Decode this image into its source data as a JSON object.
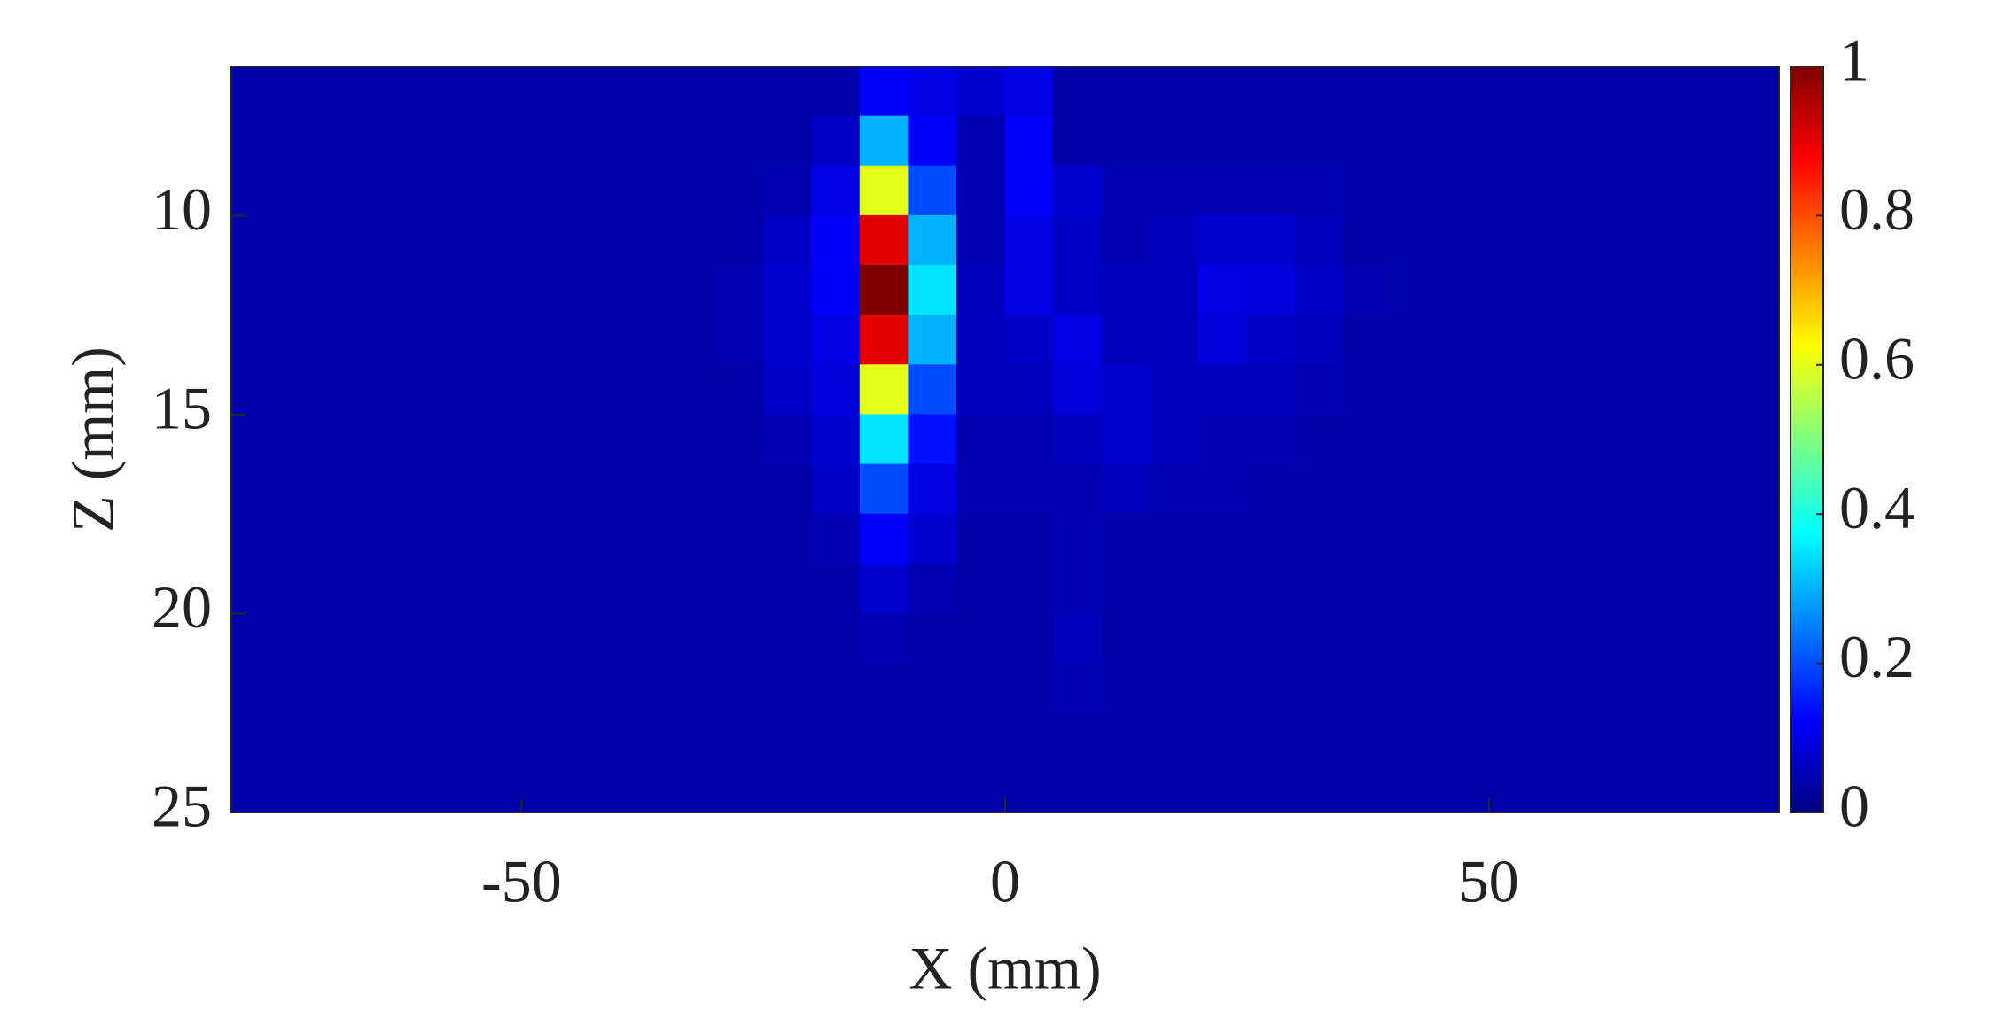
{
  "chart_data": {
    "type": "heatmap",
    "xlabel": "X (mm)",
    "ylabel": "Z (mm)",
    "xlim": [
      -80,
      80
    ],
    "ylim": [
      6.25,
      25
    ],
    "y_reversed": true,
    "xticks": [
      -50,
      0,
      50
    ],
    "yticks": [
      10,
      15,
      20,
      25
    ],
    "clim": [
      0,
      1
    ],
    "cticks": [
      0,
      0.2,
      0.4,
      0.6,
      0.8,
      1
    ],
    "colormap": "jet",
    "x": [
      -77.5,
      -72.5,
      -67.5,
      -62.5,
      -57.5,
      -52.5,
      -47.5,
      -42.5,
      -37.5,
      -32.5,
      -27.5,
      -22.5,
      -17.5,
      -12.5,
      -7.5,
      -2.5,
      2.5,
      7.5,
      12.5,
      17.5,
      22.5,
      27.5,
      32.5,
      37.5,
      42.5,
      47.5,
      52.5,
      57.5,
      62.5,
      67.5,
      72.5,
      77.5
    ],
    "y": [
      6.875,
      8.125,
      9.375,
      10.625,
      11.875,
      13.125,
      14.375,
      15.625,
      16.875,
      18.125,
      19.375,
      20.625,
      21.875,
      23.125,
      24.375
    ],
    "values": [
      [
        0.04,
        0.04,
        0.04,
        0.04,
        0.04,
        0.04,
        0.04,
        0.04,
        0.04,
        0.04,
        0.04,
        0.04,
        0.04,
        0.12,
        0.1,
        0.08,
        0.1,
        0.04,
        0.04,
        0.04,
        0.04,
        0.04,
        0.04,
        0.04,
        0.04,
        0.04,
        0.04,
        0.04,
        0.04,
        0.04,
        0.04,
        0.04
      ],
      [
        0.04,
        0.04,
        0.04,
        0.04,
        0.04,
        0.04,
        0.04,
        0.04,
        0.04,
        0.04,
        0.04,
        0.04,
        0.07,
        0.3,
        0.12,
        0.05,
        0.12,
        0.04,
        0.04,
        0.04,
        0.04,
        0.04,
        0.04,
        0.04,
        0.04,
        0.04,
        0.04,
        0.04,
        0.04,
        0.04,
        0.04,
        0.04
      ],
      [
        0.04,
        0.04,
        0.04,
        0.04,
        0.04,
        0.04,
        0.04,
        0.04,
        0.04,
        0.04,
        0.04,
        0.05,
        0.1,
        0.6,
        0.2,
        0.05,
        0.12,
        0.08,
        0.05,
        0.05,
        0.05,
        0.05,
        0.05,
        0.04,
        0.04,
        0.04,
        0.04,
        0.04,
        0.04,
        0.04,
        0.04,
        0.04
      ],
      [
        0.04,
        0.04,
        0.04,
        0.04,
        0.04,
        0.04,
        0.04,
        0.04,
        0.04,
        0.04,
        0.04,
        0.07,
        0.12,
        0.9,
        0.3,
        0.05,
        0.1,
        0.07,
        0.05,
        0.06,
        0.08,
        0.08,
        0.06,
        0.04,
        0.04,
        0.04,
        0.04,
        0.04,
        0.04,
        0.04,
        0.04,
        0.04
      ],
      [
        0.04,
        0.04,
        0.04,
        0.04,
        0.04,
        0.04,
        0.04,
        0.04,
        0.04,
        0.04,
        0.05,
        0.08,
        0.12,
        1,
        0.35,
        0.06,
        0.1,
        0.07,
        0.06,
        0.06,
        0.1,
        0.09,
        0.07,
        0.05,
        0.04,
        0.04,
        0.04,
        0.04,
        0.04,
        0.04,
        0.04,
        0.04
      ],
      [
        0.04,
        0.04,
        0.04,
        0.04,
        0.04,
        0.04,
        0.04,
        0.04,
        0.04,
        0.04,
        0.05,
        0.08,
        0.1,
        0.9,
        0.3,
        0.06,
        0.07,
        0.1,
        0.06,
        0.06,
        0.09,
        0.07,
        0.06,
        0.04,
        0.04,
        0.04,
        0.04,
        0.04,
        0.04,
        0.04,
        0.04,
        0.04
      ],
      [
        0.04,
        0.04,
        0.04,
        0.04,
        0.04,
        0.04,
        0.04,
        0.04,
        0.04,
        0.04,
        0.04,
        0.07,
        0.09,
        0.6,
        0.2,
        0.06,
        0.06,
        0.09,
        0.08,
        0.06,
        0.06,
        0.06,
        0.05,
        0.04,
        0.04,
        0.04,
        0.04,
        0.04,
        0.04,
        0.04,
        0.04,
        0.04
      ],
      [
        0.04,
        0.04,
        0.04,
        0.04,
        0.04,
        0.04,
        0.04,
        0.04,
        0.04,
        0.04,
        0.04,
        0.05,
        0.08,
        0.35,
        0.14,
        0.05,
        0.05,
        0.06,
        0.08,
        0.06,
        0.05,
        0.05,
        0.04,
        0.04,
        0.04,
        0.04,
        0.04,
        0.04,
        0.04,
        0.04,
        0.04,
        0.04
      ],
      [
        0.04,
        0.04,
        0.04,
        0.04,
        0.04,
        0.04,
        0.04,
        0.04,
        0.04,
        0.04,
        0.04,
        0.04,
        0.07,
        0.2,
        0.1,
        0.05,
        0.05,
        0.05,
        0.06,
        0.05,
        0.05,
        0.04,
        0.04,
        0.04,
        0.04,
        0.04,
        0.04,
        0.04,
        0.04,
        0.04,
        0.04,
        0.04
      ],
      [
        0.04,
        0.04,
        0.04,
        0.04,
        0.04,
        0.04,
        0.04,
        0.04,
        0.04,
        0.04,
        0.04,
        0.04,
        0.05,
        0.12,
        0.08,
        0.04,
        0.04,
        0.05,
        0.04,
        0.04,
        0.04,
        0.04,
        0.04,
        0.04,
        0.04,
        0.04,
        0.04,
        0.04,
        0.04,
        0.04,
        0.04,
        0.04
      ],
      [
        0.04,
        0.04,
        0.04,
        0.04,
        0.04,
        0.04,
        0.04,
        0.04,
        0.04,
        0.04,
        0.04,
        0.04,
        0.04,
        0.08,
        0.05,
        0.04,
        0.04,
        0.05,
        0.04,
        0.04,
        0.04,
        0.04,
        0.04,
        0.04,
        0.04,
        0.04,
        0.04,
        0.04,
        0.04,
        0.04,
        0.04,
        0.04
      ],
      [
        0.04,
        0.04,
        0.04,
        0.04,
        0.04,
        0.04,
        0.04,
        0.04,
        0.04,
        0.04,
        0.04,
        0.04,
        0.04,
        0.05,
        0.04,
        0.04,
        0.04,
        0.06,
        0.04,
        0.04,
        0.04,
        0.04,
        0.04,
        0.04,
        0.04,
        0.04,
        0.04,
        0.04,
        0.04,
        0.04,
        0.04,
        0.04
      ],
      [
        0.04,
        0.04,
        0.04,
        0.04,
        0.04,
        0.04,
        0.04,
        0.04,
        0.04,
        0.04,
        0.04,
        0.04,
        0.04,
        0.04,
        0.04,
        0.04,
        0.04,
        0.05,
        0.04,
        0.04,
        0.04,
        0.04,
        0.04,
        0.04,
        0.04,
        0.04,
        0.04,
        0.04,
        0.04,
        0.04,
        0.04,
        0.04
      ],
      [
        0.04,
        0.04,
        0.04,
        0.04,
        0.04,
        0.04,
        0.04,
        0.04,
        0.04,
        0.04,
        0.04,
        0.04,
        0.04,
        0.04,
        0.04,
        0.04,
        0.04,
        0.04,
        0.04,
        0.04,
        0.04,
        0.04,
        0.04,
        0.04,
        0.04,
        0.04,
        0.04,
        0.04,
        0.04,
        0.04,
        0.04,
        0.04
      ],
      [
        0.04,
        0.04,
        0.04,
        0.04,
        0.04,
        0.04,
        0.04,
        0.04,
        0.04,
        0.04,
        0.04,
        0.04,
        0.04,
        0.04,
        0.04,
        0.04,
        0.04,
        0.04,
        0.04,
        0.04,
        0.04,
        0.04,
        0.04,
        0.04,
        0.04,
        0.04,
        0.04,
        0.04,
        0.04,
        0.04,
        0.04,
        0.04
      ]
    ]
  }
}
